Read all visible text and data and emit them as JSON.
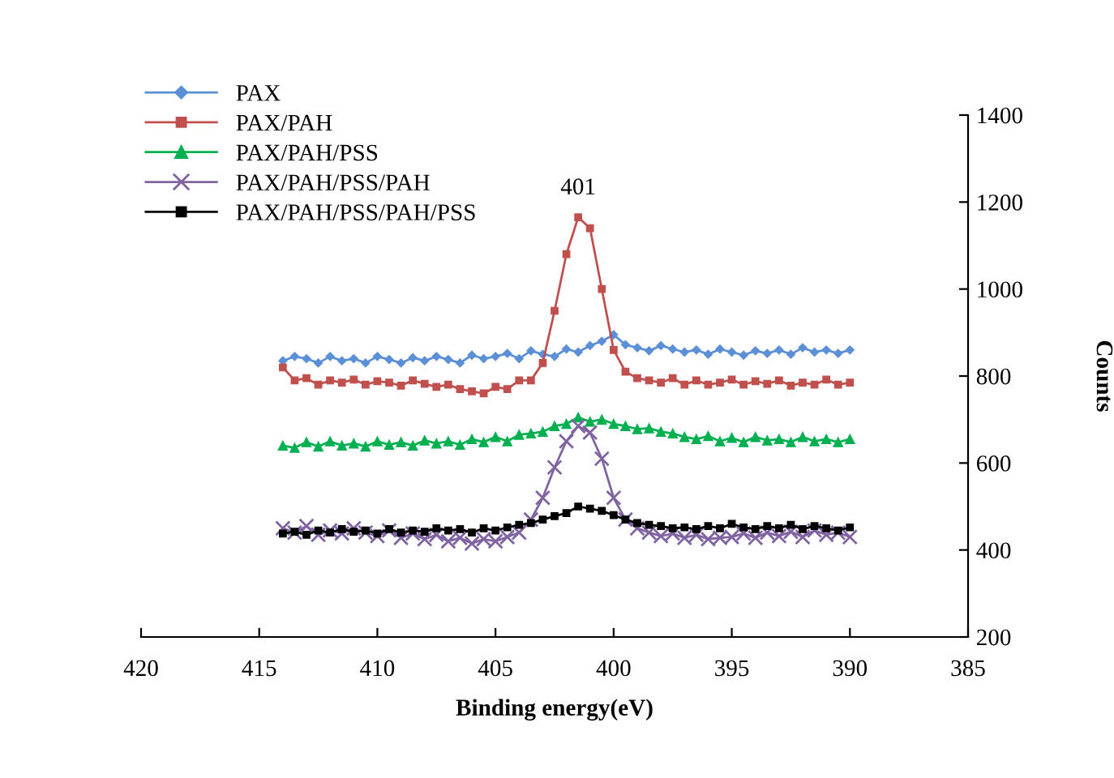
{
  "chart_data": {
    "type": "line",
    "xlabel": "Binding energy(eV)",
    "ylabel": "Counts",
    "x": [
      414,
      413.5,
      413,
      412.5,
      412,
      411.5,
      411,
      410.5,
      410,
      409.5,
      409,
      408.5,
      408,
      407.5,
      407,
      406.5,
      406,
      405.5,
      405,
      404.5,
      404,
      403.5,
      403,
      402.5,
      402,
      401.5,
      401,
      400.5,
      400,
      399.5,
      399,
      398.5,
      398,
      397.5,
      397,
      396.5,
      396,
      395.5,
      395,
      394.5,
      394,
      393.5,
      393,
      392.5,
      392,
      391.5,
      391,
      390.5,
      390
    ],
    "series": [
      {
        "name": "PAX",
        "color": "#5b8fd6",
        "marker": "diamond",
        "values": [
          835,
          845,
          840,
          830,
          845,
          835,
          840,
          830,
          845,
          838,
          830,
          842,
          835,
          845,
          838,
          830,
          848,
          840,
          845,
          852,
          840,
          858,
          850,
          845,
          862,
          855,
          870,
          880,
          895,
          872,
          865,
          858,
          870,
          862,
          855,
          860,
          850,
          862,
          855,
          848,
          858,
          852,
          860,
          850,
          865,
          855,
          860,
          852,
          860
        ]
      },
      {
        "name": "PAX/PAH",
        "color": "#c0504d",
        "marker": "square",
        "values": [
          820,
          790,
          795,
          780,
          790,
          785,
          792,
          780,
          788,
          785,
          778,
          790,
          782,
          775,
          780,
          770,
          765,
          760,
          775,
          770,
          790,
          790,
          830,
          950,
          1080,
          1165,
          1140,
          1000,
          860,
          810,
          795,
          790,
          785,
          795,
          780,
          790,
          780,
          785,
          792,
          780,
          788,
          782,
          790,
          778,
          785,
          780,
          792,
          780,
          785
        ]
      },
      {
        "name": "PAX/PAH/PSS",
        "color": "#00b050",
        "marker": "triangle",
        "values": [
          640,
          635,
          648,
          638,
          650,
          640,
          645,
          638,
          650,
          642,
          648,
          640,
          652,
          645,
          650,
          642,
          655,
          648,
          660,
          650,
          665,
          668,
          672,
          685,
          690,
          705,
          695,
          700,
          690,
          685,
          678,
          680,
          672,
          668,
          660,
          655,
          662,
          650,
          658,
          648,
          660,
          652,
          655,
          648,
          660,
          650,
          655,
          648,
          655
        ]
      },
      {
        "name": "PAX/PAH/PSS/PAH",
        "color": "#8064a2",
        "marker": "cross",
        "values": [
          450,
          440,
          455,
          435,
          445,
          438,
          450,
          440,
          432,
          445,
          428,
          438,
          425,
          435,
          420,
          428,
          415,
          425,
          420,
          430,
          440,
          470,
          520,
          590,
          650,
          685,
          670,
          610,
          520,
          470,
          450,
          440,
          432,
          438,
          428,
          435,
          425,
          428,
          430,
          438,
          428,
          440,
          432,
          442,
          430,
          445,
          435,
          440,
          430
        ]
      },
      {
        "name": "PAX/PAH/PSS/PAH/PSS",
        "color": "#000000",
        "marker": "square",
        "values": [
          438,
          442,
          435,
          445,
          440,
          448,
          442,
          445,
          438,
          448,
          440,
          445,
          442,
          450,
          445,
          448,
          440,
          450,
          445,
          452,
          458,
          462,
          470,
          478,
          485,
          500,
          495,
          490,
          480,
          470,
          462,
          458,
          455,
          450,
          452,
          448,
          455,
          450,
          460,
          452,
          448,
          455,
          450,
          458,
          448,
          455,
          450,
          445,
          452
        ]
      }
    ],
    "xlim": [
      420,
      385
    ],
    "xticks": [
      420,
      415,
      410,
      405,
      400,
      395,
      390,
      385
    ],
    "ylim": [
      200,
      1400
    ],
    "yticks": [
      200,
      400,
      600,
      800,
      1000,
      1200,
      1400
    ],
    "annotations": [
      {
        "text": "401",
        "x": 401.5,
        "y": 1165
      }
    ],
    "legend": "top left",
    "grid": false
  }
}
